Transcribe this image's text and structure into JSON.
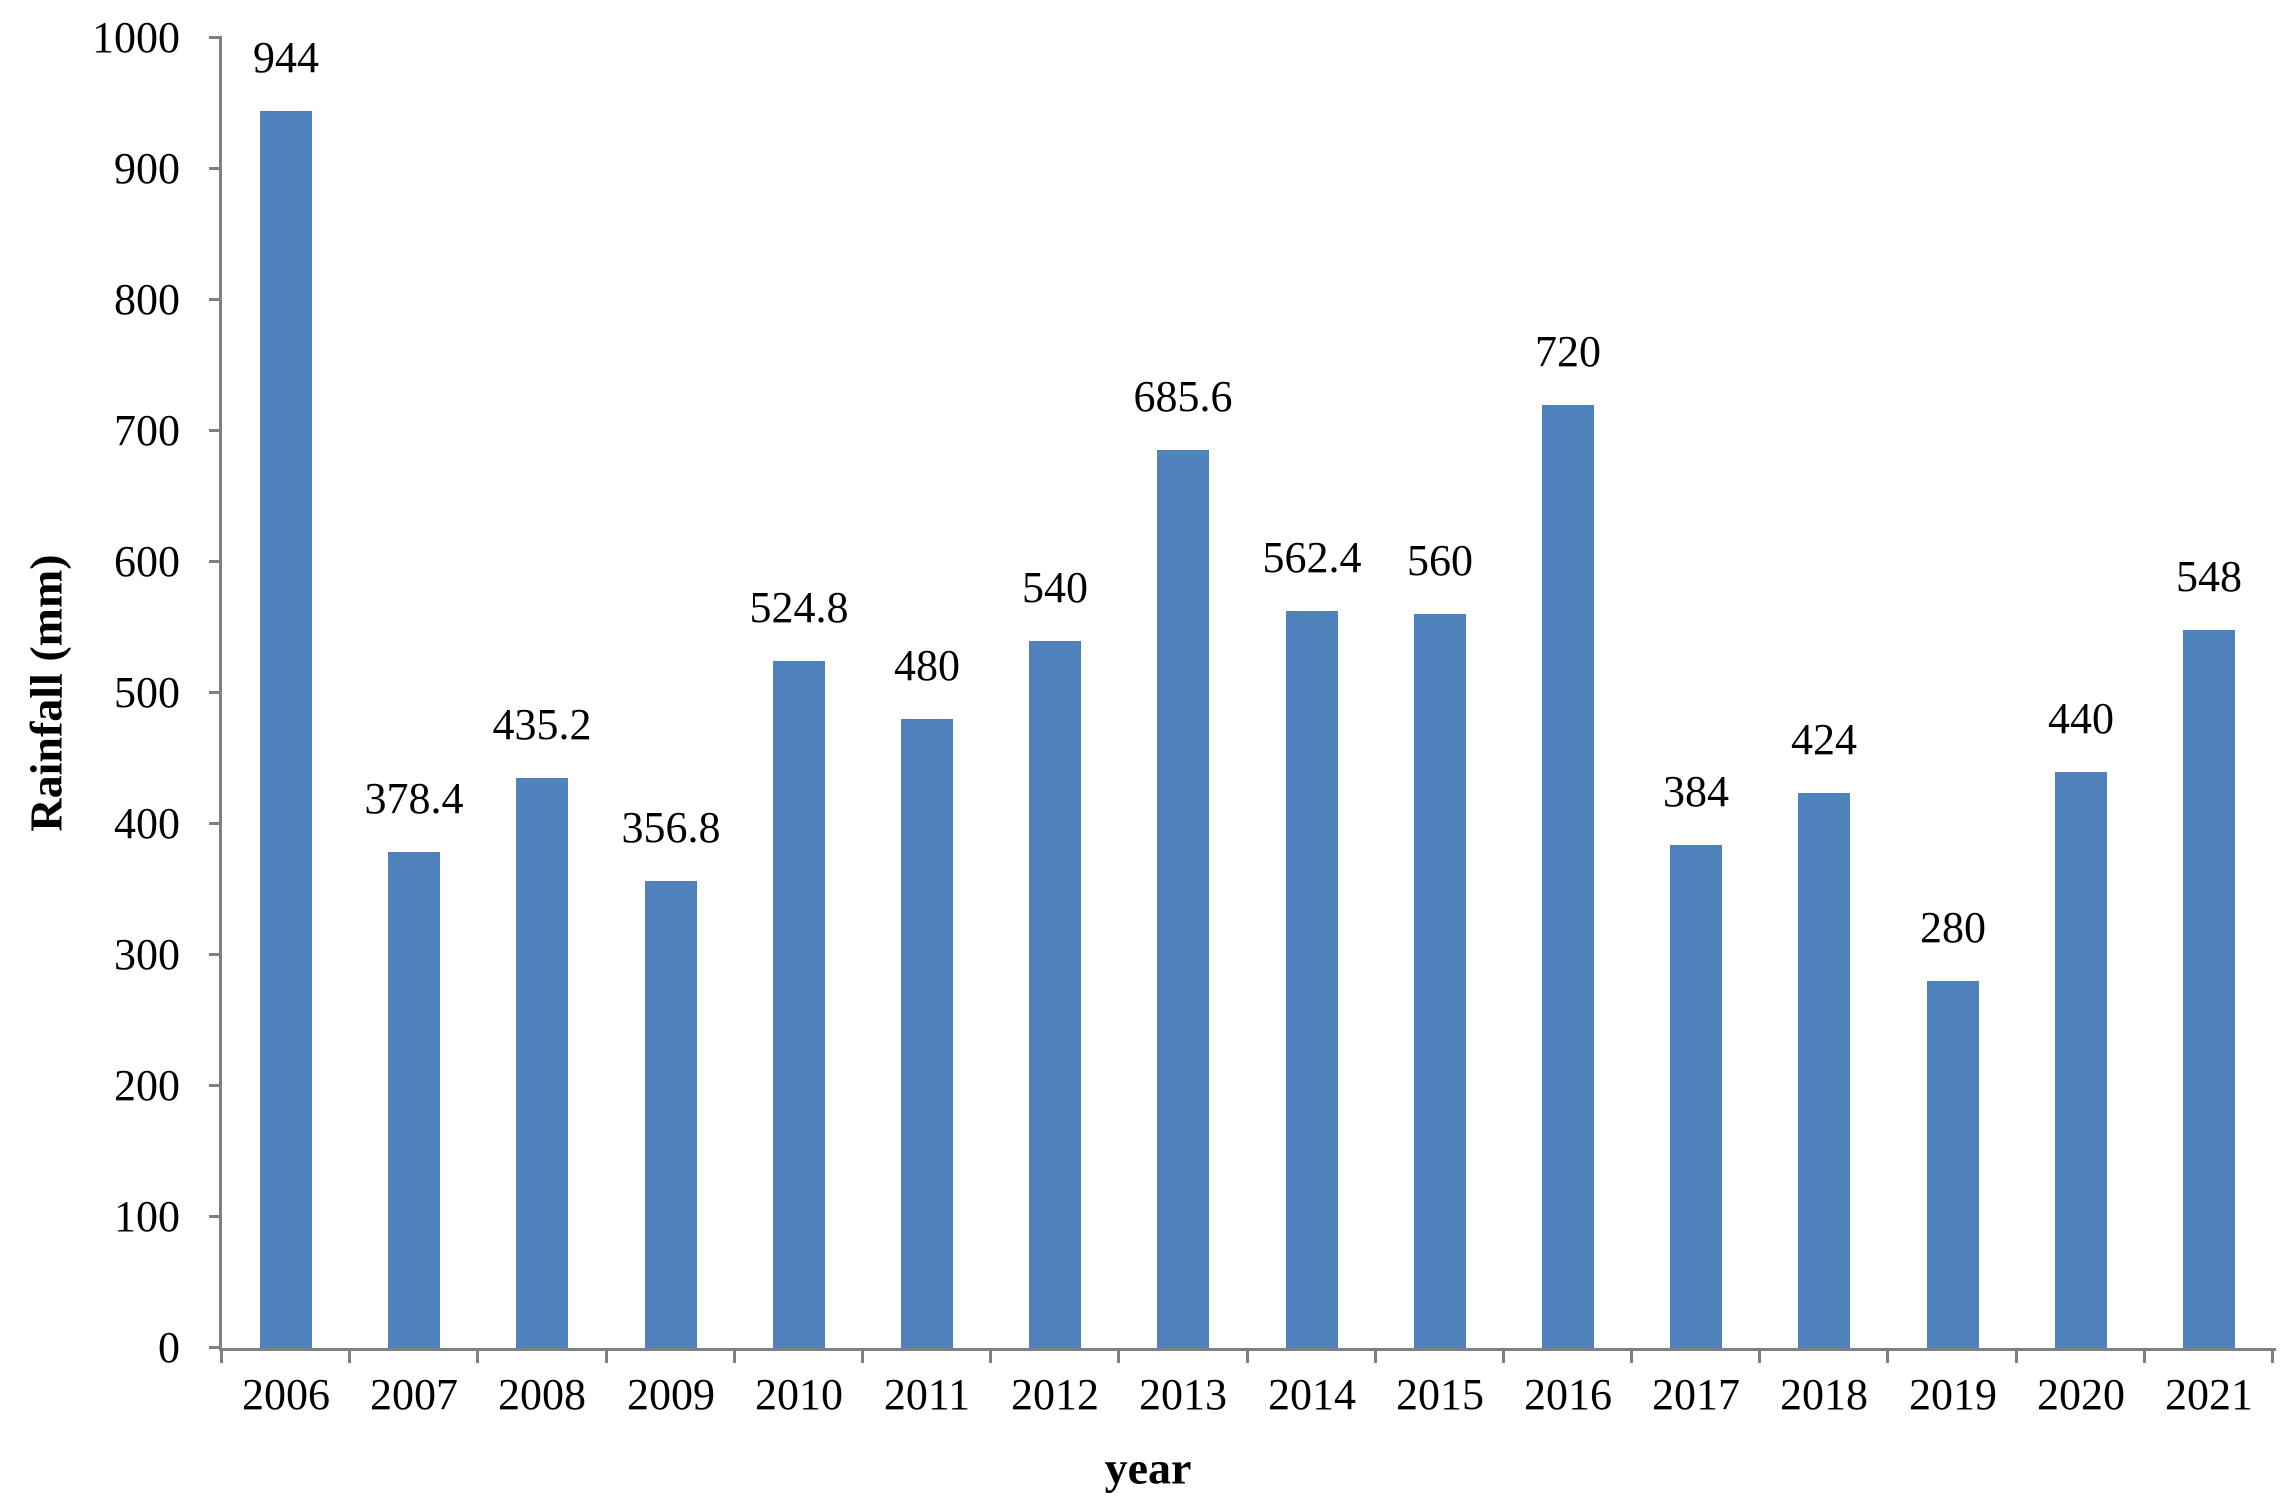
{
  "chart_data": {
    "type": "bar",
    "title": "",
    "categories": [
      "2006",
      "2007",
      "2008",
      "2009",
      "2010",
      "2011",
      "2012",
      "2013",
      "2014",
      "2015",
      "2016",
      "2017",
      "2018",
      "2019",
      "2020",
      "2021"
    ],
    "values": [
      944,
      378.4,
      435.2,
      356.8,
      524.8,
      480,
      540,
      685.6,
      562.4,
      560,
      720,
      384,
      424,
      280,
      440,
      548
    ],
    "data_labels": [
      "944",
      "378.4",
      "435.2",
      "356.8",
      "524.8",
      "480",
      "540",
      "685.6",
      "562.4",
      "560",
      "720",
      "384",
      "424",
      "280",
      "440",
      "548"
    ],
    "xlabel": "year",
    "ylabel": "Rainfall (mm)",
    "ylim": [
      0,
      1000
    ],
    "ytick_step": 100,
    "ytick_labels": [
      "0",
      "100",
      "200",
      "300",
      "400",
      "500",
      "600",
      "700",
      "800",
      "900",
      "1000"
    ],
    "grid": false,
    "legend": "none",
    "colors": {
      "bar": "#4F81BD",
      "axis": "#808080",
      "text": "#000000",
      "background": "#FFFFFF"
    }
  }
}
